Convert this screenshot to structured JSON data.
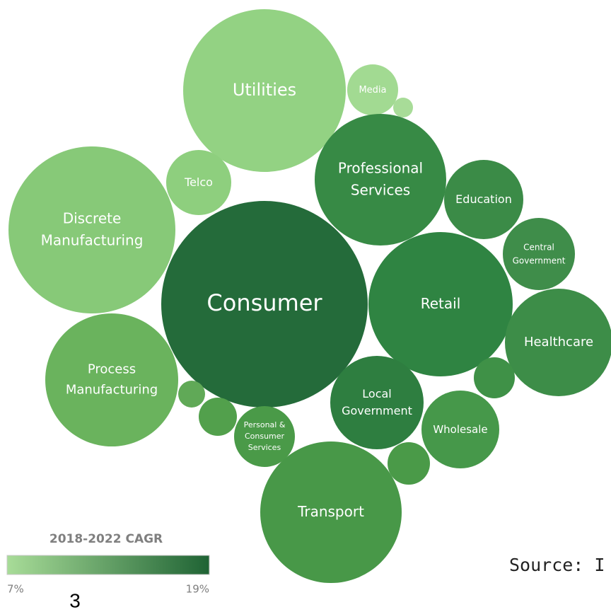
{
  "nodes": [
    {
      "label": [
        "Utilities"
      ],
      "color": "#93d283"
    },
    {
      "label": [
        "Media"
      ],
      "color": "#a2da92"
    },
    {
      "color": "#a8dc98"
    },
    {
      "label": [
        "Telco"
      ],
      "color": "#8ecf7e"
    },
    {
      "label": [
        "Discrete",
        "Manufacturing"
      ],
      "color": "#87c978"
    },
    {
      "label": [
        "Professional",
        "Services"
      ],
      "color": "#378a45"
    },
    {
      "label": [
        "Education"
      ],
      "color": "#3b8b47"
    },
    {
      "label": [
        "Central",
        "Government"
      ],
      "color": "#3f8d4a"
    },
    {
      "label": [
        "Consumer"
      ],
      "color": "#246b3a"
    },
    {
      "label": [
        "Retail"
      ],
      "color": "#2f8442"
    },
    {
      "label": [
        "Healthcare"
      ],
      "color": "#3d8d48"
    },
    {
      "label": [
        "Process",
        "Manufacturing"
      ],
      "color": "#6ab35d"
    },
    {
      "color": "#60a957"
    },
    {
      "color": "#52a04c"
    },
    {
      "label": [
        "Personal &",
        "Consumer",
        "Services"
      ],
      "color": "#4a9a48"
    },
    {
      "label": [
        "Local",
        "Government"
      ],
      "color": "#2e7e40"
    },
    {
      "color": "#3f9147"
    },
    {
      "label": [
        "Wholesale"
      ],
      "color": "#46984a"
    },
    {
      "color": "#4a9a48"
    },
    {
      "label": [
        "Transport"
      ],
      "color": "#489848"
    }
  ],
  "legend": {
    "title": "2018-2022 CAGR",
    "min_label": "7%",
    "max_label": "19%",
    "min_color": "#a8dc98",
    "max_color": "#1f6334"
  },
  "footnote": "3",
  "source": "Source: I"
}
